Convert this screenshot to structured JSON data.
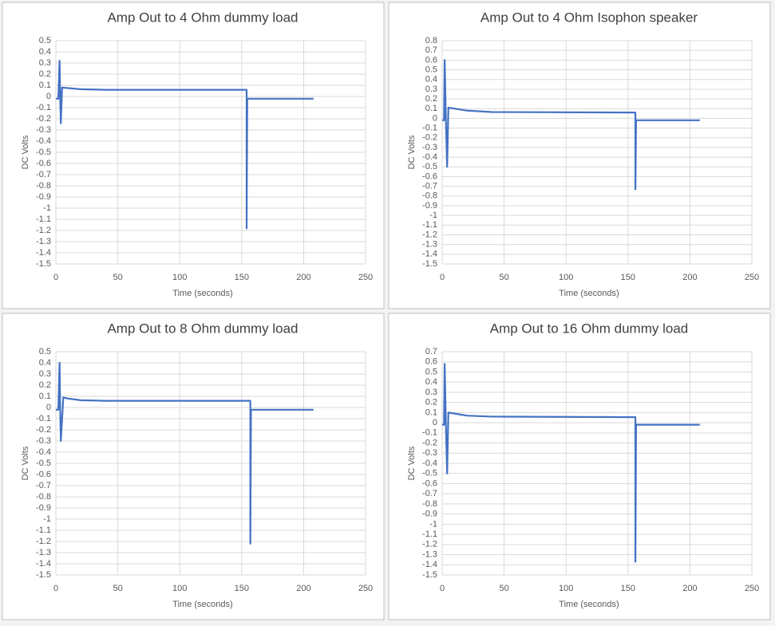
{
  "chart_data": [
    {
      "type": "line",
      "title": "Amp Out to 4 Ohm dummy load",
      "x_label": "Time (seconds)",
      "y_label": "DC Volts",
      "color": "#4472c4",
      "grid": true,
      "xlim": [
        0,
        250
      ],
      "xticks": [
        0,
        50,
        100,
        150,
        200,
        250
      ],
      "ylim": [
        -1.5,
        0.5
      ],
      "yticks": [
        0.5,
        0.4,
        0.3,
        0.2,
        0.1,
        0,
        -0.1,
        -0.2,
        -0.3,
        -0.4,
        -0.5,
        -0.6,
        -0.7,
        -0.8,
        -0.9,
        -1,
        -1.1,
        -1.2,
        -1.3,
        -1.4,
        -1.5
      ],
      "x": [
        0,
        2,
        3,
        3.5,
        4,
        5,
        10,
        20,
        40,
        154,
        154,
        154.5,
        208
      ],
      "values": [
        -0.02,
        -0.02,
        0.32,
        -0.02,
        -0.24,
        0.08,
        0.075,
        0.065,
        0.06,
        0.06,
        -1.18,
        -0.02,
        -0.02
      ]
    },
    {
      "type": "line",
      "title": "Amp Out to 4 Ohm Isophon speaker",
      "x_label": "Time (seconds)",
      "y_label": "DC Volts",
      "color": "#4472c4",
      "grid": true,
      "xlim": [
        0,
        250
      ],
      "xticks": [
        0,
        50,
        100,
        150,
        200,
        250
      ],
      "ylim": [
        -1.5,
        0.8
      ],
      "yticks": [
        0.8,
        0.7,
        0.6,
        0.5,
        0.4,
        0.3,
        0.2,
        0.1,
        0,
        -0.1,
        -0.2,
        -0.3,
        -0.4,
        -0.5,
        -0.6,
        -0.7,
        -0.8,
        -0.9,
        -1,
        -1.1,
        -1.2,
        -1.3,
        -1.4,
        -1.5
      ],
      "x": [
        0,
        1.5,
        2,
        3,
        4,
        5,
        10,
        20,
        40,
        156,
        156,
        156.5,
        208
      ],
      "values": [
        -0.02,
        -0.02,
        0.6,
        -0.02,
        -0.5,
        0.11,
        0.1,
        0.08,
        0.065,
        0.06,
        -0.73,
        -0.02,
        -0.02
      ]
    },
    {
      "type": "line",
      "title": "Amp Out to 8 Ohm dummy load",
      "x_label": "Time (seconds)",
      "y_label": "DC Volts",
      "color": "#4472c4",
      "grid": true,
      "xlim": [
        0,
        250
      ],
      "xticks": [
        0,
        50,
        100,
        150,
        200,
        250
      ],
      "ylim": [
        -1.5,
        0.5
      ],
      "yticks": [
        0.5,
        0.4,
        0.3,
        0.2,
        0.1,
        0,
        -0.1,
        -0.2,
        -0.3,
        -0.4,
        -0.5,
        -0.6,
        -0.7,
        -0.8,
        -0.9,
        -1,
        -1.1,
        -1.2,
        -1.3,
        -1.4,
        -1.5
      ],
      "x": [
        0,
        2,
        3,
        3.5,
        4,
        6,
        10,
        20,
        40,
        157,
        157,
        157.5,
        208
      ],
      "values": [
        -0.02,
        -0.02,
        0.4,
        -0.02,
        -0.3,
        0.09,
        0.08,
        0.065,
        0.06,
        0.06,
        -1.22,
        -0.02,
        -0.02
      ]
    },
    {
      "type": "line",
      "title": "Amp Out to 16 Ohm dummy load",
      "x_label": "Time (seconds)",
      "y_label": "DC Volts",
      "color": "#4472c4",
      "grid": true,
      "xlim": [
        0,
        250
      ],
      "xticks": [
        0,
        50,
        100,
        150,
        200,
        250
      ],
      "ylim": [
        -1.5,
        0.7
      ],
      "yticks": [
        0.7,
        0.6,
        0.5,
        0.4,
        0.3,
        0.2,
        0.1,
        0,
        -0.1,
        -0.2,
        -0.3,
        -0.4,
        -0.5,
        -0.6,
        -0.7,
        -0.8,
        -0.9,
        -1,
        -1.1,
        -1.2,
        -1.3,
        -1.4,
        -1.5
      ],
      "x": [
        0,
        1.5,
        2,
        3,
        4,
        5,
        10,
        20,
        40,
        156,
        156,
        156.5,
        208
      ],
      "values": [
        -0.02,
        -0.02,
        0.58,
        -0.02,
        -0.5,
        0.1,
        0.09,
        0.07,
        0.06,
        0.055,
        -1.37,
        -0.02,
        -0.02
      ]
    }
  ]
}
